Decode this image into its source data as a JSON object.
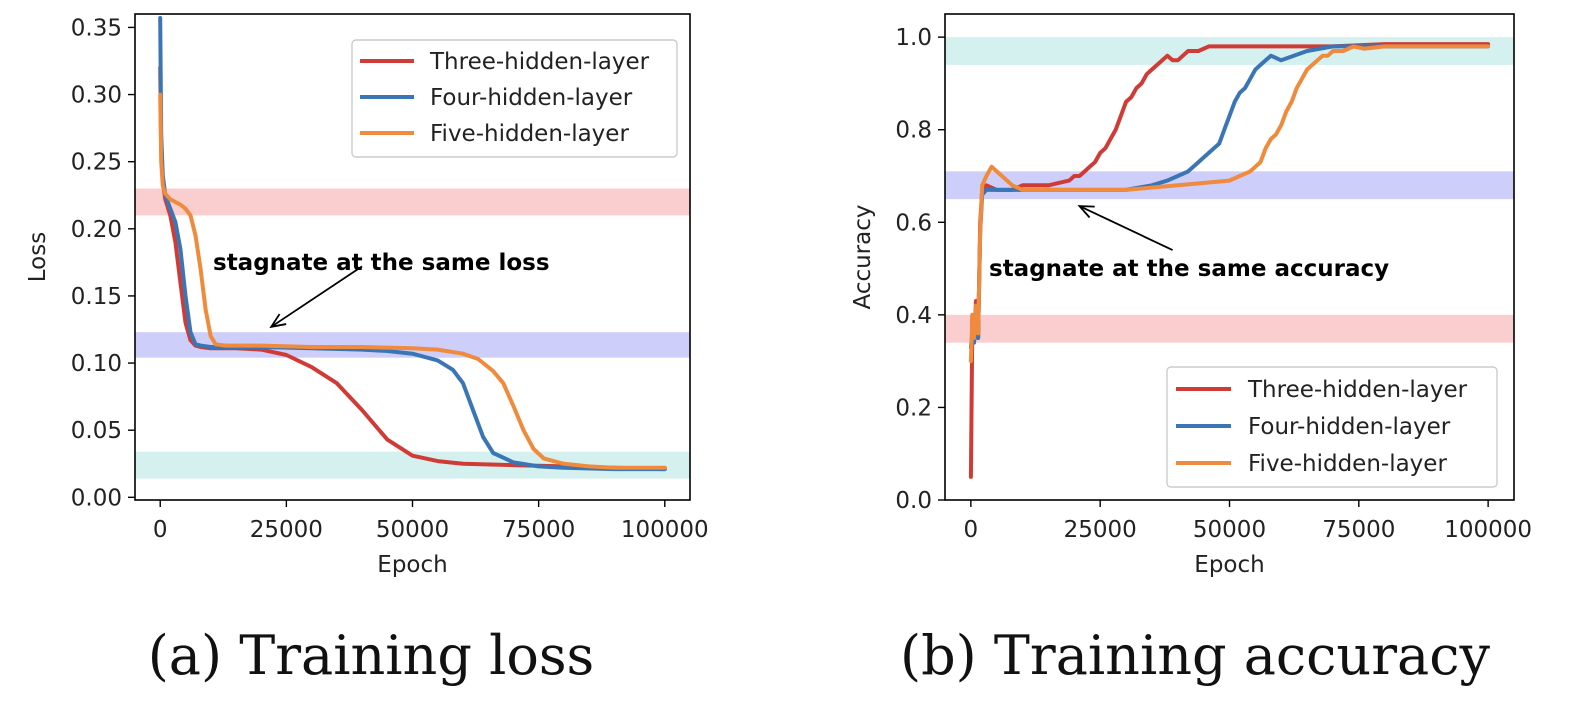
{
  "colors": {
    "three": "#d13b36",
    "four": "#3a76b5",
    "five": "#f08a3c",
    "band_red": "#f9c6c6",
    "band_blue": "#c6c6f9",
    "band_teal": "#cdeeed"
  },
  "chart_data": [
    {
      "id": "a",
      "type": "line",
      "caption": "(a) Training loss",
      "xlabel": "Epoch",
      "ylabel": "Loss",
      "xlim": [
        -5000,
        105000
      ],
      "ylim": [
        -0.002,
        0.36
      ],
      "xticks": [
        0,
        25000,
        50000,
        75000,
        100000
      ],
      "xtick_labels": [
        "0",
        "25000",
        "50000",
        "75000",
        "100000"
      ],
      "yticks": [
        0.0,
        0.05,
        0.1,
        0.15,
        0.2,
        0.25,
        0.3,
        0.35
      ],
      "ytick_labels": [
        "0.00",
        "0.05",
        "0.10",
        "0.15",
        "0.20",
        "0.25",
        "0.30",
        "0.35"
      ],
      "bands": [
        {
          "y0": 0.21,
          "y1": 0.23,
          "color": "band_red"
        },
        {
          "y0": 0.104,
          "y1": 0.123,
          "color": "band_blue"
        },
        {
          "y0": 0.014,
          "y1": 0.034,
          "color": "band_teal"
        }
      ],
      "legend": {
        "position": "upper right"
      },
      "annotation": {
        "text": "stagnate at the same loss",
        "xy": [
          22000,
          0.127
        ],
        "xytext": [
          40000,
          0.172
        ]
      },
      "series": [
        {
          "name": "Three-hidden-layer",
          "color": "three",
          "x": [
            0,
            200,
            500,
            1000,
            2000,
            3000,
            4000,
            5000,
            6000,
            7000,
            8000,
            10000,
            15000,
            20000,
            25000,
            30000,
            35000,
            40000,
            45000,
            50000,
            55000,
            60000,
            70000,
            80000,
            90000,
            100000
          ],
          "y": [
            0.32,
            0.26,
            0.235,
            0.222,
            0.21,
            0.19,
            0.16,
            0.13,
            0.117,
            0.113,
            0.112,
            0.111,
            0.111,
            0.11,
            0.106,
            0.097,
            0.085,
            0.065,
            0.043,
            0.031,
            0.027,
            0.025,
            0.024,
            0.023,
            0.022,
            0.021
          ]
        },
        {
          "name": "Four-hidden-layer",
          "color": "four",
          "x": [
            0,
            200,
            500,
            1000,
            2000,
            3000,
            4000,
            5000,
            6000,
            7000,
            8000,
            10000,
            20000,
            30000,
            40000,
            45000,
            50000,
            55000,
            58000,
            60000,
            62000,
            64000,
            66000,
            70000,
            75000,
            80000,
            90000,
            100000
          ],
          "y": [
            0.357,
            0.27,
            0.24,
            0.225,
            0.215,
            0.205,
            0.185,
            0.15,
            0.123,
            0.114,
            0.113,
            0.112,
            0.112,
            0.111,
            0.11,
            0.109,
            0.107,
            0.102,
            0.095,
            0.085,
            0.065,
            0.045,
            0.033,
            0.026,
            0.023,
            0.022,
            0.021,
            0.021
          ]
        },
        {
          "name": "Five-hidden-layer",
          "color": "five",
          "x": [
            0,
            200,
            500,
            1000,
            2000,
            3000,
            4000,
            5000,
            6000,
            7000,
            8000,
            9000,
            10000,
            11000,
            13000,
            20000,
            30000,
            40000,
            50000,
            55000,
            60000,
            63000,
            66000,
            68000,
            70000,
            72000,
            74000,
            76000,
            80000,
            85000,
            90000,
            100000
          ],
          "y": [
            0.3,
            0.25,
            0.232,
            0.226,
            0.222,
            0.22,
            0.218,
            0.215,
            0.21,
            0.195,
            0.17,
            0.14,
            0.12,
            0.114,
            0.113,
            0.113,
            0.112,
            0.112,
            0.111,
            0.11,
            0.107,
            0.103,
            0.094,
            0.085,
            0.068,
            0.05,
            0.036,
            0.029,
            0.025,
            0.023,
            0.022,
            0.022
          ]
        }
      ]
    },
    {
      "id": "b",
      "type": "line",
      "caption": "(b) Training accuracy",
      "xlabel": "Epoch",
      "ylabel": "Accuracy",
      "xlim": [
        -5000,
        105000
      ],
      "ylim": [
        0.0,
        1.05
      ],
      "xticks": [
        0,
        25000,
        50000,
        75000,
        100000
      ],
      "xtick_labels": [
        "0",
        "25000",
        "50000",
        "75000",
        "100000"
      ],
      "yticks": [
        0.0,
        0.2,
        0.4,
        0.6,
        0.8,
        1.0
      ],
      "ytick_labels": [
        "0.0",
        "0.2",
        "0.4",
        "0.6",
        "0.8",
        "1.0"
      ],
      "bands": [
        {
          "y0": 0.94,
          "y1": 1.0,
          "color": "band_teal"
        },
        {
          "y0": 0.65,
          "y1": 0.71,
          "color": "band_blue"
        },
        {
          "y0": 0.34,
          "y1": 0.4,
          "color": "band_red"
        }
      ],
      "legend": {
        "position": "lower right"
      },
      "annotation": {
        "text": "stagnate at the same accuracy",
        "xy": [
          21000,
          0.635
        ],
        "xytext": [
          39000,
          0.54
        ]
      },
      "series": [
        {
          "name": "Three-hidden-layer",
          "color": "three",
          "x": [
            0,
            300,
            600,
            1000,
            1400,
            1800,
            2200,
            3000,
            5000,
            8000,
            10000,
            15000,
            19000,
            20000,
            21000,
            22000,
            23000,
            24000,
            25000,
            26000,
            27000,
            28000,
            29000,
            30000,
            31000,
            32000,
            33000,
            34000,
            35000,
            36000,
            37000,
            38000,
            39000,
            40000,
            41000,
            42000,
            44000,
            46000,
            50000,
            60000,
            70000,
            80000,
            100000
          ],
          "y": [
            0.05,
            0.4,
            0.34,
            0.43,
            0.35,
            0.6,
            0.67,
            0.68,
            0.67,
            0.67,
            0.68,
            0.68,
            0.69,
            0.7,
            0.7,
            0.71,
            0.72,
            0.73,
            0.75,
            0.76,
            0.78,
            0.8,
            0.83,
            0.86,
            0.87,
            0.89,
            0.9,
            0.92,
            0.93,
            0.94,
            0.95,
            0.96,
            0.95,
            0.95,
            0.96,
            0.97,
            0.97,
            0.98,
            0.98,
            0.98,
            0.98,
            0.985,
            0.985
          ]
        },
        {
          "name": "Four-hidden-layer",
          "color": "four",
          "x": [
            0,
            300,
            600,
            1000,
            1400,
            1800,
            2200,
            3000,
            5000,
            10000,
            20000,
            30000,
            35000,
            38000,
            40000,
            42000,
            44000,
            45000,
            46000,
            47000,
            48000,
            49000,
            50000,
            51000,
            52000,
            53000,
            54000,
            55000,
            56000,
            57000,
            58000,
            60000,
            65000,
            70000,
            75000,
            80000,
            100000
          ],
          "y": [
            0.33,
            0.36,
            0.34,
            0.4,
            0.35,
            0.58,
            0.66,
            0.67,
            0.67,
            0.67,
            0.67,
            0.67,
            0.68,
            0.69,
            0.7,
            0.71,
            0.73,
            0.74,
            0.75,
            0.76,
            0.77,
            0.8,
            0.83,
            0.86,
            0.88,
            0.89,
            0.91,
            0.93,
            0.94,
            0.95,
            0.96,
            0.95,
            0.97,
            0.98,
            0.98,
            0.98,
            0.98
          ]
        },
        {
          "name": "Five-hidden-layer",
          "color": "five",
          "x": [
            0,
            300,
            600,
            1000,
            1400,
            1800,
            2200,
            3000,
            4000,
            5000,
            6000,
            7000,
            8000,
            10000,
            20000,
            30000,
            40000,
            50000,
            52000,
            54000,
            55000,
            56000,
            57000,
            58000,
            59000,
            60000,
            61000,
            62000,
            63000,
            64000,
            65000,
            66000,
            67000,
            68000,
            69000,
            70000,
            72000,
            74000,
            76000,
            80000,
            100000
          ],
          "y": [
            0.3,
            0.4,
            0.35,
            0.42,
            0.36,
            0.58,
            0.68,
            0.7,
            0.72,
            0.71,
            0.7,
            0.69,
            0.68,
            0.67,
            0.67,
            0.67,
            0.68,
            0.69,
            0.7,
            0.71,
            0.72,
            0.73,
            0.76,
            0.78,
            0.79,
            0.81,
            0.84,
            0.86,
            0.89,
            0.91,
            0.93,
            0.94,
            0.95,
            0.96,
            0.96,
            0.97,
            0.97,
            0.98,
            0.975,
            0.98,
            0.98
          ]
        }
      ]
    }
  ]
}
